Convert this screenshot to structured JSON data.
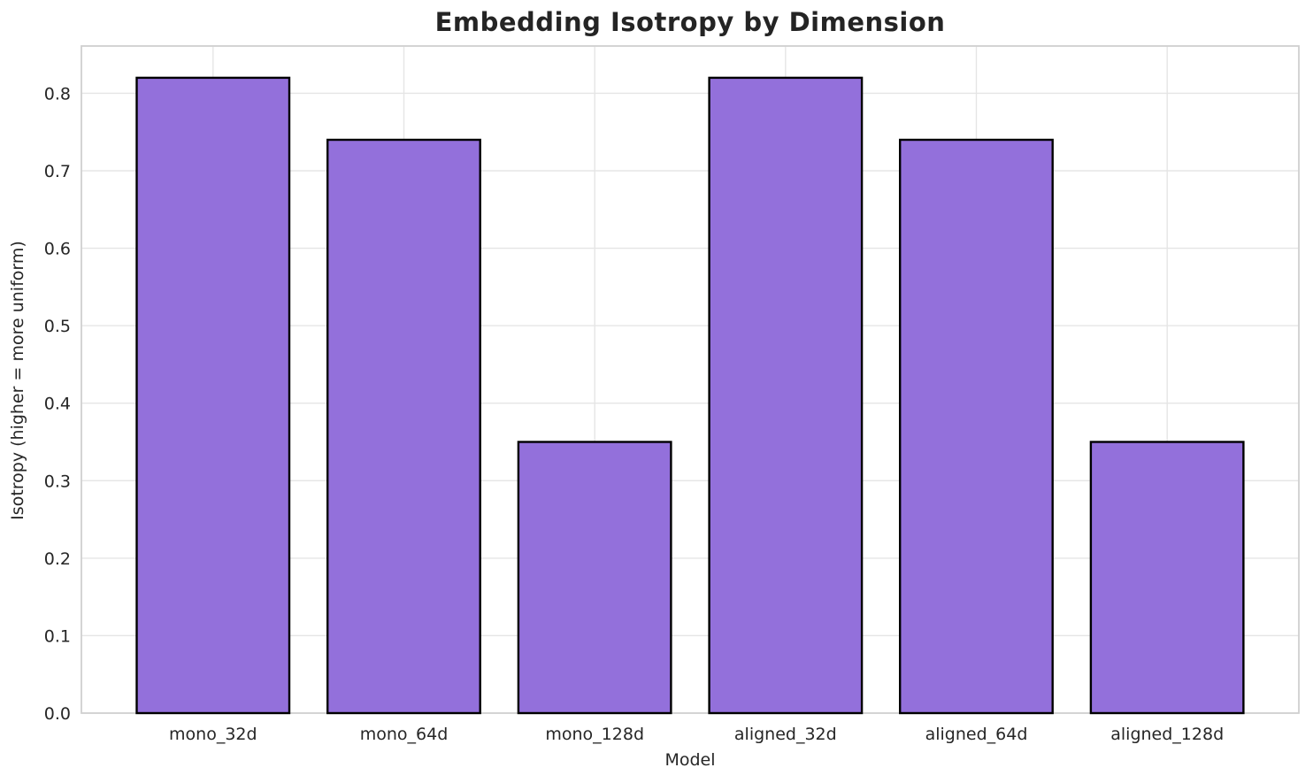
{
  "chart_data": {
    "type": "bar",
    "title": "Embedding Isotropy by Dimension",
    "xlabel": "Model",
    "ylabel": "Isotropy (higher = more uniform)",
    "categories": [
      "mono_32d",
      "mono_64d",
      "mono_128d",
      "aligned_32d",
      "aligned_64d",
      "aligned_128d"
    ],
    "values": [
      0.82,
      0.74,
      0.35,
      0.82,
      0.74,
      0.35
    ],
    "yticks": [
      "0.0",
      "0.1",
      "0.2",
      "0.3",
      "0.4",
      "0.5",
      "0.6",
      "0.7",
      "0.8"
    ],
    "ytick_values": [
      0.0,
      0.1,
      0.2,
      0.3,
      0.4,
      0.5,
      0.6,
      0.7,
      0.8
    ],
    "ylim": [
      0,
      0.861
    ],
    "grid": "on",
    "legend": "none",
    "colors": {
      "bar_fill": "#9370DB",
      "bar_edge": "#000000",
      "grid_line": "#e5e5e5",
      "spine": "#d0d0d0",
      "text": "#262626",
      "background": "#ffffff"
    }
  }
}
